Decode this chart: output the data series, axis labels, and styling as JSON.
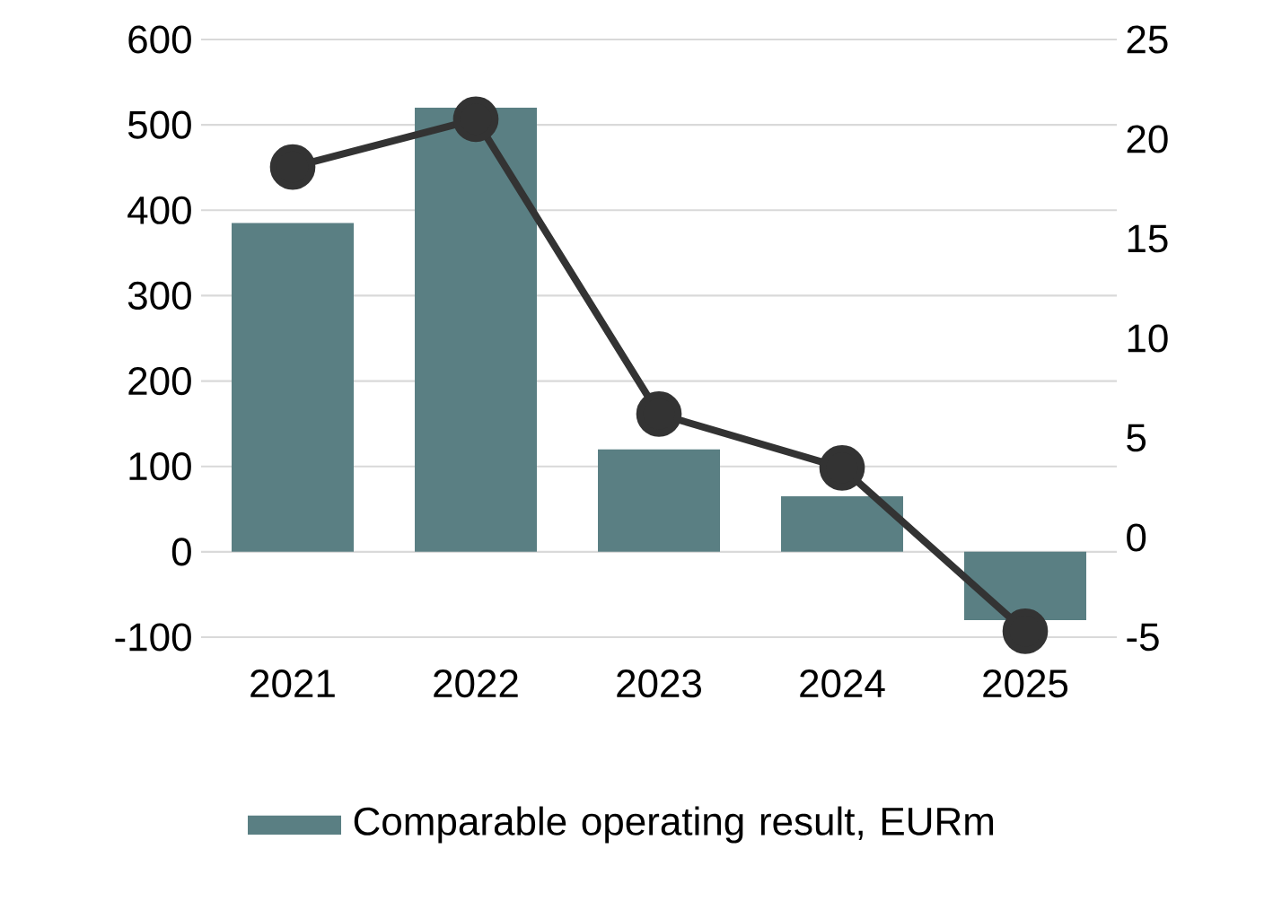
{
  "chart_data": {
    "type": "bar",
    "categories": [
      "2021",
      "2022",
      "2023",
      "2024",
      "2025"
    ],
    "series": [
      {
        "name": "Comparable operating result, EURm",
        "color": "#5a7f83",
        "values": [
          385,
          520,
          120,
          65,
          -80
        ]
      },
      {
        "type": "line",
        "axis": "y2",
        "color": "#333333",
        "values": [
          18.6,
          21.0,
          6.2,
          3.5,
          -4.7
        ]
      }
    ],
    "ylim": [
      -100,
      600
    ],
    "yticks": [
      -100,
      0,
      100,
      200,
      300,
      400,
      500,
      600
    ],
    "y2lim": [
      -5,
      25
    ],
    "y2ticks": [
      -5,
      0,
      5,
      10,
      15,
      20,
      25
    ],
    "grid": "y",
    "legend": "bottom",
    "marker": "circle",
    "line_style": "solid"
  }
}
